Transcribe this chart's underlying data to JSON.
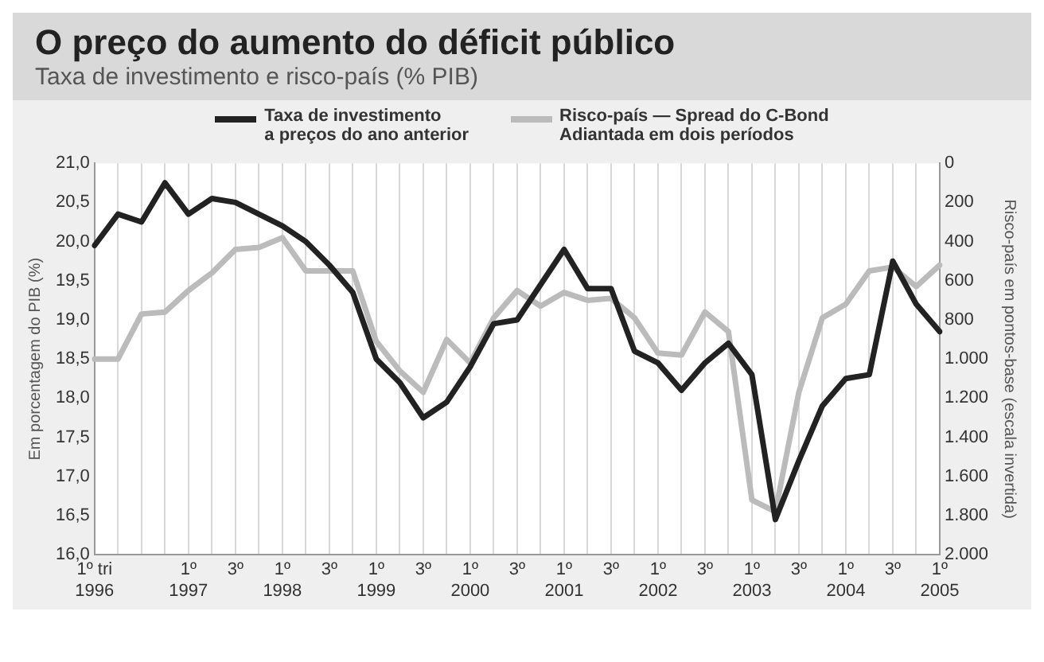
{
  "chart_data": {
    "type": "line",
    "title": "O preço do aumento do déficit público",
    "subtitle": "Taxa de investimento e risco-país (% PIB)",
    "ylabel": "Em porcentagem do PIB (%)",
    "y2label": "Risco-país em pontos-base (escala invertida)",
    "categories": [
      "1º tri\n1996",
      null,
      null,
      null,
      "1º\n1997",
      null,
      "3º",
      null,
      "1º\n1998",
      null,
      "3º",
      null,
      "1º\n1999",
      null,
      "3º",
      null,
      "1º\n2000",
      null,
      "3º",
      null,
      "1º\n2001",
      null,
      "3º",
      null,
      "1º\n2002",
      null,
      "3º",
      null,
      "1º\n2003",
      null,
      "3º",
      null,
      "1º\n2004",
      null,
      "3º",
      null,
      "1º\n2005"
    ],
    "series": [
      {
        "name": "Taxa de investimento\na preços do ano anterior",
        "color": "#222222",
        "values": [
          19.95,
          20.35,
          20.25,
          20.75,
          20.35,
          20.55,
          20.5,
          20.35,
          20.2,
          20.0,
          19.7,
          19.35,
          18.5,
          18.2,
          17.75,
          17.95,
          18.4,
          18.95,
          19.0,
          19.45,
          19.9,
          19.4,
          19.4,
          18.6,
          18.45,
          18.1,
          18.45,
          18.7,
          18.3,
          16.45,
          17.2,
          17.9,
          18.25,
          18.3,
          19.75,
          19.2,
          18.85
        ]
      },
      {
        "name": "Risco-país — Spread do C-Bond\nAdiantada em dois períodos",
        "color": "#bbbbbb",
        "axis": "y2",
        "values": [
          1000,
          1000,
          770,
          760,
          650,
          560,
          440,
          430,
          380,
          550,
          550,
          550,
          910,
          1060,
          1170,
          900,
          1020,
          790,
          650,
          730,
          660,
          700,
          690,
          790,
          970,
          980,
          760,
          860,
          1720,
          1780,
          1170,
          790,
          720,
          550,
          530,
          630,
          520
        ]
      }
    ],
    "ylim": [
      16,
      21
    ],
    "yticks": [
      {
        "value": 16,
        "label": "16,0"
      },
      {
        "value": 16.5,
        "label": "16,5"
      },
      {
        "value": 17,
        "label": "17,0"
      },
      {
        "value": 17.5,
        "label": "17,5"
      },
      {
        "value": 18,
        "label": "18,0"
      },
      {
        "value": 18.5,
        "label": "18,5"
      },
      {
        "value": 19,
        "label": "19,0"
      },
      {
        "value": 19.5,
        "label": "19,5"
      },
      {
        "value": 20,
        "label": "20,0"
      },
      {
        "value": 20.5,
        "label": "20,5"
      },
      {
        "value": 21,
        "label": "21,0"
      }
    ],
    "y2lim": [
      2000,
      0
    ],
    "y2ticks": [
      0,
      200,
      400,
      600,
      800,
      {
        "value": 1000,
        "label": "1.000"
      },
      {
        "value": 1200,
        "label": "1.200"
      },
      {
        "value": 1400,
        "label": "1.400"
      },
      {
        "value": 1600,
        "label": "1.600"
      },
      {
        "value": 1800,
        "label": "1.800"
      },
      {
        "value": 2000,
        "label": "2.000"
      }
    ],
    "grid": "x",
    "legend": "top",
    "marker": "none",
    "line_style": "solid"
  }
}
